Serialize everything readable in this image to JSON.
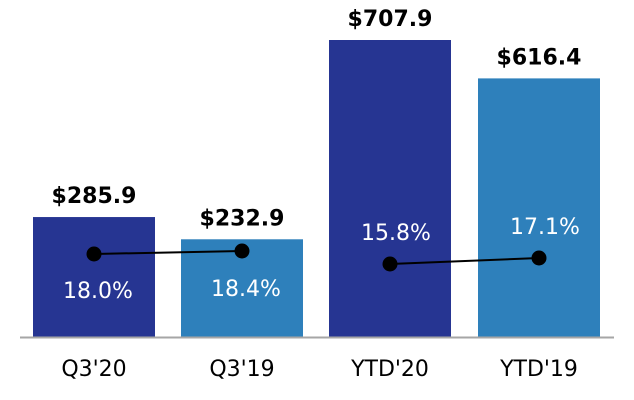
{
  "chart_data": {
    "type": "bar",
    "title": "",
    "xlabel": "",
    "ylabel": "",
    "ylim": [
      0,
      707.9
    ],
    "categories": [
      "Q3'20",
      "Q3'19",
      "YTD'20",
      "YTD'19"
    ],
    "values": [
      285.9,
      232.9,
      707.9,
      616.4
    ],
    "value_labels": [
      "$285.9",
      "$232.9",
      "$707.9",
      "$616.4"
    ],
    "margins": [
      18.0,
      18.4,
      15.8,
      17.1
    ],
    "margin_labels": [
      "18.0%",
      "18.4%",
      "15.8%",
      "17.1%"
    ],
    "margin_line_groups": [
      [
        0,
        1
      ],
      [
        2,
        3
      ]
    ],
    "grid": false,
    "legend": "none"
  },
  "colors": {
    "current_period": "#263592",
    "prior_period": "#2e80bb",
    "axis": "#a6a6a6",
    "line": "#000000"
  }
}
